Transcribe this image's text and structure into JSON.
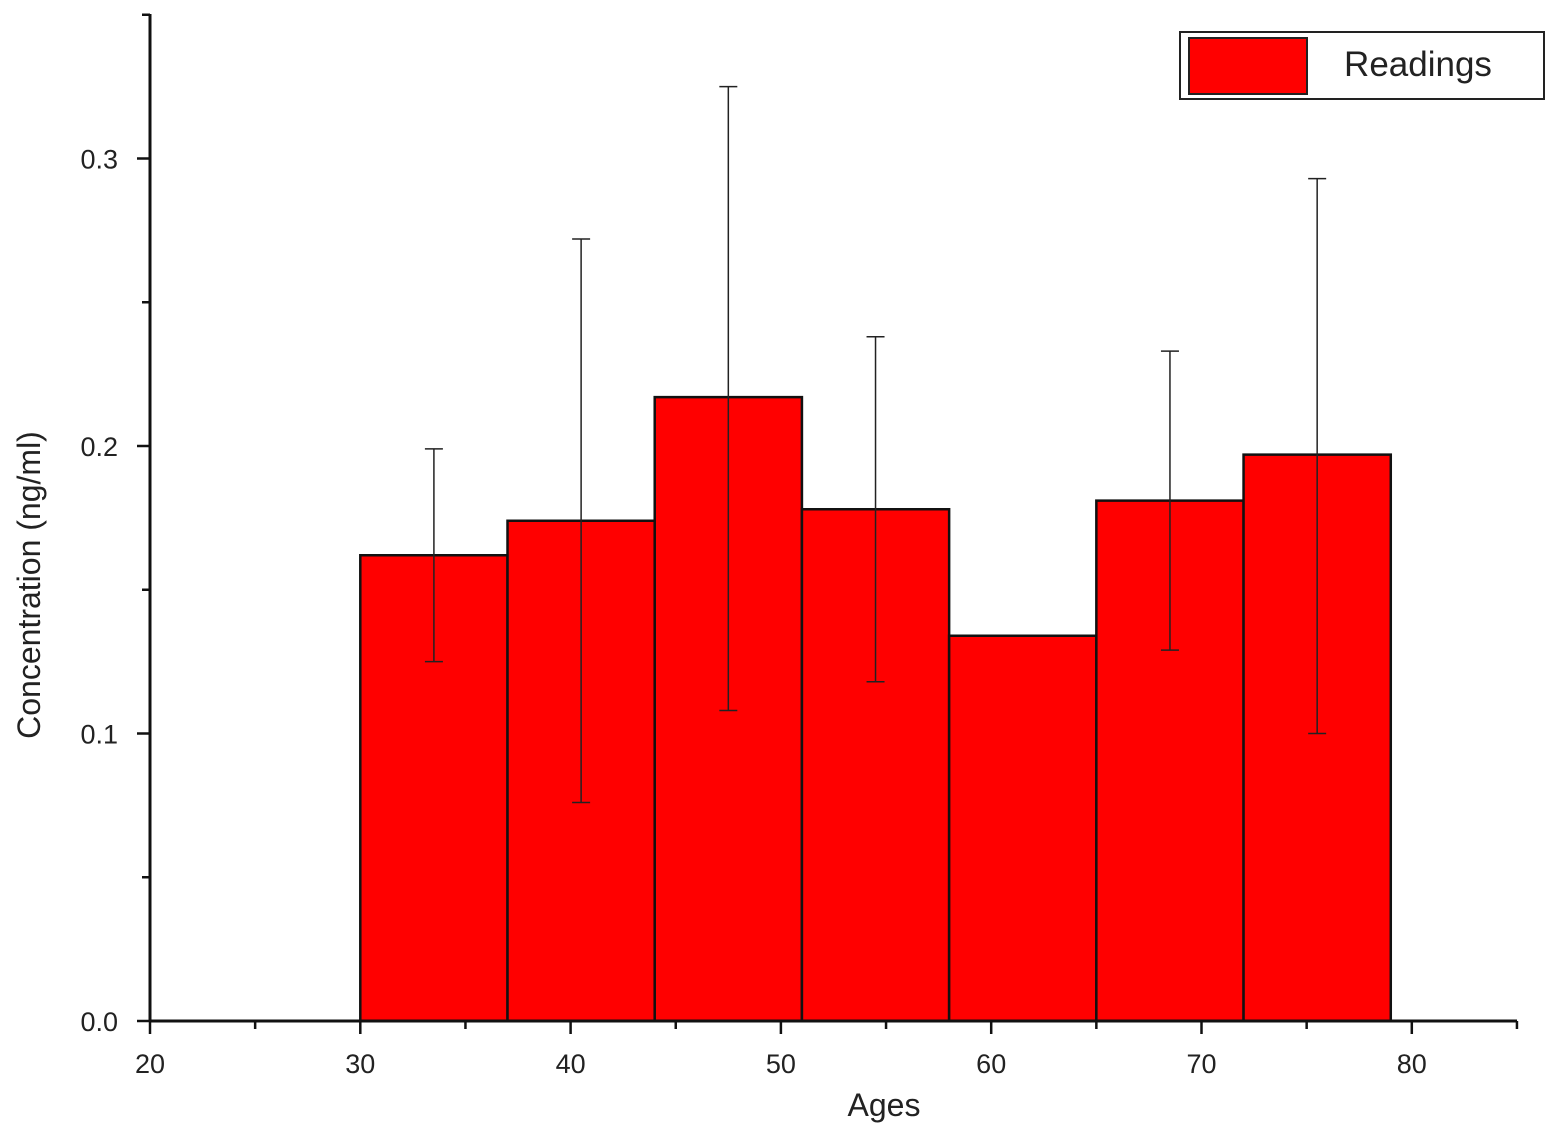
{
  "chart_data": {
    "type": "bar",
    "xlabel": "Ages",
    "ylabel": "Concentration (ng/ml)",
    "xlim": [
      20,
      85
    ],
    "ylim": [
      0,
      0.35
    ],
    "x_ticks": [
      "20",
      "30",
      "40",
      "50",
      "60",
      "70",
      "80"
    ],
    "y_ticks": [
      "0.0",
      "0.1",
      "0.2",
      "0.3"
    ],
    "legend": {
      "position": "top-right"
    },
    "grid": false,
    "series": [
      {
        "name": "Readings",
        "color": "#ff0000",
        "bins": [
          {
            "start": 30,
            "end": 37,
            "value": 0.162,
            "error_low": 0.125,
            "error_high": 0.199
          },
          {
            "start": 37,
            "end": 44,
            "value": 0.174,
            "error_low": 0.076,
            "error_high": 0.272
          },
          {
            "start": 44,
            "end": 51,
            "value": 0.217,
            "error_low": 0.108,
            "error_high": 0.325
          },
          {
            "start": 51,
            "end": 58,
            "value": 0.178,
            "error_low": 0.118,
            "error_high": 0.238
          },
          {
            "start": 58,
            "end": 65,
            "value": 0.134,
            "error_low": 0.134,
            "error_high": 0.134
          },
          {
            "start": 65,
            "end": 72,
            "value": 0.181,
            "error_low": 0.129,
            "error_high": 0.233
          },
          {
            "start": 72,
            "end": 79,
            "value": 0.197,
            "error_low": 0.1,
            "error_high": 0.293
          }
        ]
      }
    ]
  }
}
